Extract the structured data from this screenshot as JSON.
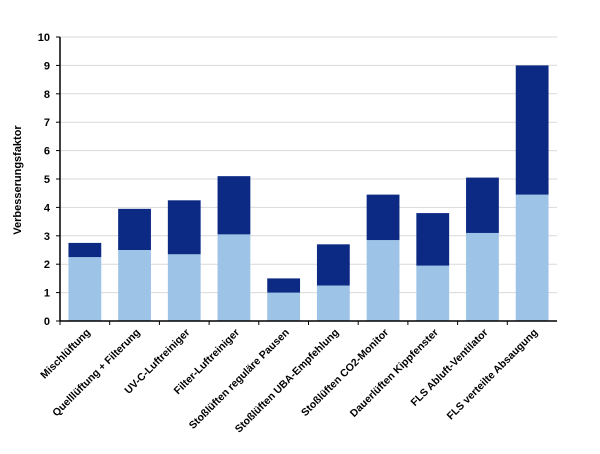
{
  "chart_data": {
    "type": "bar",
    "stacked": true,
    "title": "",
    "xlabel": "",
    "ylabel": "Verbesserungsfaktor",
    "ylim": [
      0,
      10
    ],
    "yticks": [
      0,
      1,
      2,
      3,
      4,
      5,
      6,
      7,
      8,
      9,
      10
    ],
    "grid": true,
    "legend": "none",
    "categories": [
      "Mischlüftung",
      "Quelllüftung + Filterung",
      "UV-C-Luftreiniger",
      "Filter-Luftreiniger",
      "Stoßlüften reguläre Pausen",
      "Stoßlüften UBA-Empfehlung",
      "Stoßlüften CO2-Monitor",
      "Dauerlüften Kippfenster",
      "FLS Abluft-Ventilator",
      "FLS verteilte Absaugung"
    ],
    "series": [
      {
        "color": "#9dc3e6",
        "values": [
          2.25,
          2.5,
          2.35,
          3.05,
          1.0,
          1.25,
          2.85,
          1.95,
          3.1,
          4.45
        ]
      },
      {
        "color": "#0c2a84",
        "values": [
          0.5,
          1.45,
          1.9,
          2.05,
          0.5,
          1.45,
          1.6,
          1.85,
          1.95,
          4.55
        ]
      }
    ]
  }
}
